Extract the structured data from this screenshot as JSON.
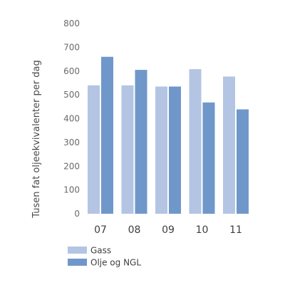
{
  "chart_data": {
    "type": "bar",
    "categories": [
      "07",
      "08",
      "09",
      "10",
      "11"
    ],
    "series": [
      {
        "name": "Gass",
        "values": [
          540,
          540,
          535,
          608,
          577
        ],
        "color": "#b3c5e3"
      },
      {
        "name": "Olje og NGL",
        "values": [
          660,
          605,
          535,
          468,
          439
        ],
        "color": "#7097c9"
      }
    ],
    "ylabel": "Tusen fat oljeekvivalenter per dag",
    "xlabel": "",
    "ylim": [
      0,
      800
    ],
    "yticks": [
      0,
      100,
      200,
      300,
      400,
      500,
      600,
      700,
      800
    ],
    "grid": false,
    "legend_position": "bottom-left"
  }
}
